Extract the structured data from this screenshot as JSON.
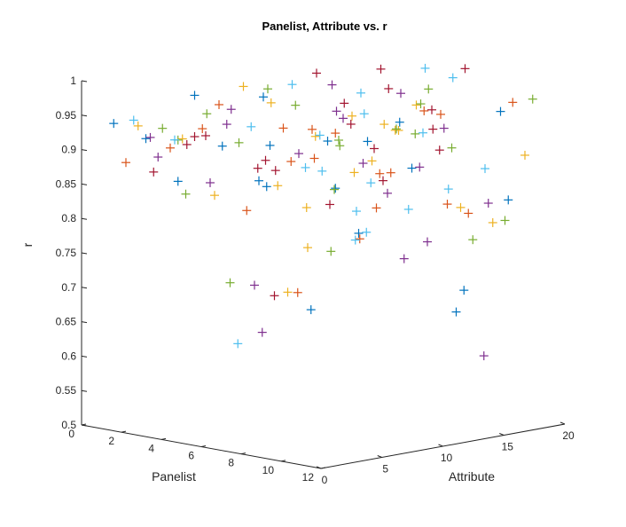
{
  "chart_data": {
    "type": "scatter",
    "title": "Panelist, Attribute vs. r",
    "xlabel": "Panelist",
    "ylabel": "Attribute",
    "zlabel": "r",
    "xlim": [
      0,
      12
    ],
    "ylim": [
      0,
      20
    ],
    "zlim": [
      0.5,
      1.0
    ],
    "x_ticks": [
      "0",
      "2",
      "4",
      "6",
      "8",
      "10",
      "12"
    ],
    "y_ticks": [
      "0",
      "5",
      "10",
      "15",
      "20"
    ],
    "z_ticks": [
      "0.5",
      "0.55",
      "0.6",
      "0.65",
      "0.7",
      "0.75",
      "0.8",
      "0.85",
      "0.9",
      "0.95",
      "1"
    ],
    "marker": "+",
    "series": [
      {
        "color": "#0072BD",
        "points": [
          [
            1,
            1,
            0.94
          ],
          [
            2,
            2,
            0.92
          ],
          [
            3,
            3,
            0.86
          ],
          [
            4,
            5,
            0.91
          ],
          [
            5,
            7,
            0.85
          ],
          [
            6,
            9,
            0.67
          ],
          [
            7,
            12,
            0.91
          ],
          [
            8,
            14,
            0.87
          ],
          [
            9,
            16,
            0.66
          ],
          [
            10,
            18,
            0.95
          ],
          [
            2,
            6,
            0.97
          ],
          [
            4,
            8,
            0.85
          ],
          [
            6,
            11,
            0.84
          ],
          [
            8,
            13,
            0.94
          ],
          [
            10,
            15,
            0.7
          ],
          [
            11,
            17,
            0.83
          ],
          [
            3,
            10,
            0.96
          ],
          [
            5,
            12,
            0.9
          ],
          [
            7,
            4,
            0.93
          ],
          [
            9,
            8,
            0.8
          ]
        ]
      },
      {
        "color": "#D95319",
        "points": [
          [
            1,
            2,
            0.88
          ],
          [
            2,
            4,
            0.9
          ],
          [
            3,
            5,
            0.93
          ],
          [
            4,
            7,
            0.81
          ],
          [
            5,
            9,
            0.88
          ],
          [
            6,
            11,
            0.92
          ],
          [
            7,
            13,
            0.86
          ],
          [
            8,
            15,
            0.95
          ],
          [
            9,
            17,
            0.8
          ],
          [
            10,
            19,
            0.96
          ],
          [
            2,
            8,
            0.95
          ],
          [
            4,
            10,
            0.92
          ],
          [
            6,
            13,
            0.76
          ],
          [
            8,
            6,
            0.91
          ],
          [
            10,
            9,
            0.89
          ],
          [
            11,
            12,
            0.84
          ],
          [
            3,
            14,
            0.9
          ],
          [
            5,
            16,
            0.79
          ],
          [
            7,
            18,
            0.93
          ],
          [
            9,
            3,
            0.73
          ]
        ]
      },
      {
        "color": "#EDB120",
        "points": [
          [
            1,
            3,
            0.93
          ],
          [
            2,
            5,
            0.91
          ],
          [
            3,
            6,
            0.83
          ],
          [
            4,
            9,
            0.96
          ],
          [
            5,
            11,
            0.91
          ],
          [
            6,
            14,
            0.87
          ],
          [
            7,
            16,
            0.95
          ],
          [
            8,
            18,
            0.8
          ],
          [
            9,
            19,
            0.78
          ],
          [
            10,
            20,
            0.88
          ],
          [
            2,
            10,
            0.97
          ],
          [
            4,
            12,
            0.74
          ],
          [
            6,
            15,
            0.92
          ],
          [
            8,
            3,
            0.88
          ],
          [
            10,
            6,
            0.9
          ],
          [
            11,
            8,
            0.96
          ],
          [
            3,
            12,
            0.67
          ],
          [
            5,
            14,
            0.93
          ],
          [
            7,
            7,
            0.83
          ],
          [
            9,
            11,
            0.94
          ]
        ]
      },
      {
        "color": "#7E2F8E",
        "points": [
          [
            1,
            4,
            0.91
          ],
          [
            2,
            3,
            0.89
          ],
          [
            3,
            7,
            0.93
          ],
          [
            4,
            4,
            0.86
          ],
          [
            5,
            6,
            0.71
          ],
          [
            6,
            8,
            0.9
          ],
          [
            7,
            10,
            0.95
          ],
          [
            8,
            12,
            0.84
          ],
          [
            9,
            15,
            0.93
          ],
          [
            10,
            17,
            0.82
          ],
          [
            2,
            9,
            0.94
          ],
          [
            4,
            14,
            0.97
          ],
          [
            6,
            5,
            0.65
          ],
          [
            8,
            10,
            0.89
          ],
          [
            10,
            12,
            0.78
          ],
          [
            11,
            15,
            0.61
          ],
          [
            3,
            16,
            0.92
          ],
          [
            5,
            18,
            0.95
          ],
          [
            7,
            15,
            0.73
          ],
          [
            9,
            13,
            0.88
          ]
        ]
      },
      {
        "color": "#77AC30",
        "points": [
          [
            1,
            5,
            0.92
          ],
          [
            2,
            7,
            0.94
          ],
          [
            3,
            8,
            0.9
          ],
          [
            4,
            11,
            0.95
          ],
          [
            5,
            13,
            0.89
          ],
          [
            6,
            16,
            0.91
          ],
          [
            7,
            17,
            0.97
          ],
          [
            8,
            19,
            0.75
          ],
          [
            9,
            20,
            0.78
          ],
          [
            10,
            11,
            0.94
          ],
          [
            2,
            12,
            0.96
          ],
          [
            4,
            2,
            0.85
          ],
          [
            6,
            18,
            0.94
          ],
          [
            8,
            8,
            0.93
          ],
          [
            10,
            14,
            0.91
          ],
          [
            11,
            19,
            0.97
          ],
          [
            3,
            3,
            0.92
          ],
          [
            5,
            4,
            0.72
          ],
          [
            7,
            9,
            0.76
          ],
          [
            9,
            6,
            0.87
          ]
        ]
      },
      {
        "color": "#4DBEEE",
        "points": [
          [
            1,
            6,
            0.9
          ],
          [
            2,
            1,
            0.95
          ],
          [
            3,
            9,
            0.92
          ],
          [
            4,
            13,
            0.9
          ],
          [
            5,
            15,
            0.93
          ],
          [
            6,
            17,
            0.79
          ],
          [
            7,
            19,
            0.98
          ],
          [
            8,
            20,
            0.85
          ],
          [
            9,
            5,
            0.9
          ],
          [
            10,
            7,
            0.81
          ],
          [
            2,
            14,
            0.96
          ],
          [
            4,
            16,
            0.78
          ],
          [
            6,
            3,
            0.64
          ],
          [
            8,
            17,
            0.83
          ],
          [
            10,
            2,
            0.92
          ],
          [
            11,
            10,
            0.95
          ],
          [
            3,
            18,
            0.94
          ],
          [
            5,
            20,
            0.98
          ],
          [
            7,
            11,
            0.77
          ],
          [
            9,
            9,
            0.87
          ]
        ]
      },
      {
        "color": "#A2142F",
        "points": [
          [
            1,
            7,
            0.89
          ],
          [
            2,
            6,
            0.91
          ],
          [
            3,
            11,
            0.85
          ],
          [
            4,
            15,
            0.94
          ],
          [
            5,
            17,
            0.96
          ],
          [
            6,
            19,
            0.9
          ],
          [
            7,
            20,
            0.99
          ],
          [
            8,
            9,
            0.95
          ],
          [
            9,
            10,
            0.87
          ],
          [
            10,
            13,
            0.91
          ],
          [
            2,
            16,
            0.97
          ],
          [
            4,
            18,
            0.98
          ],
          [
            6,
            6,
            0.7
          ],
          [
            8,
            2,
            0.92
          ],
          [
            10,
            4,
            0.86
          ],
          [
            11,
            6,
            0.94
          ],
          [
            3,
            1,
            0.88
          ],
          [
            5,
            2,
            0.94
          ],
          [
            7,
            3,
            0.9
          ],
          [
            9,
            14,
            0.96
          ]
        ]
      }
    ]
  }
}
